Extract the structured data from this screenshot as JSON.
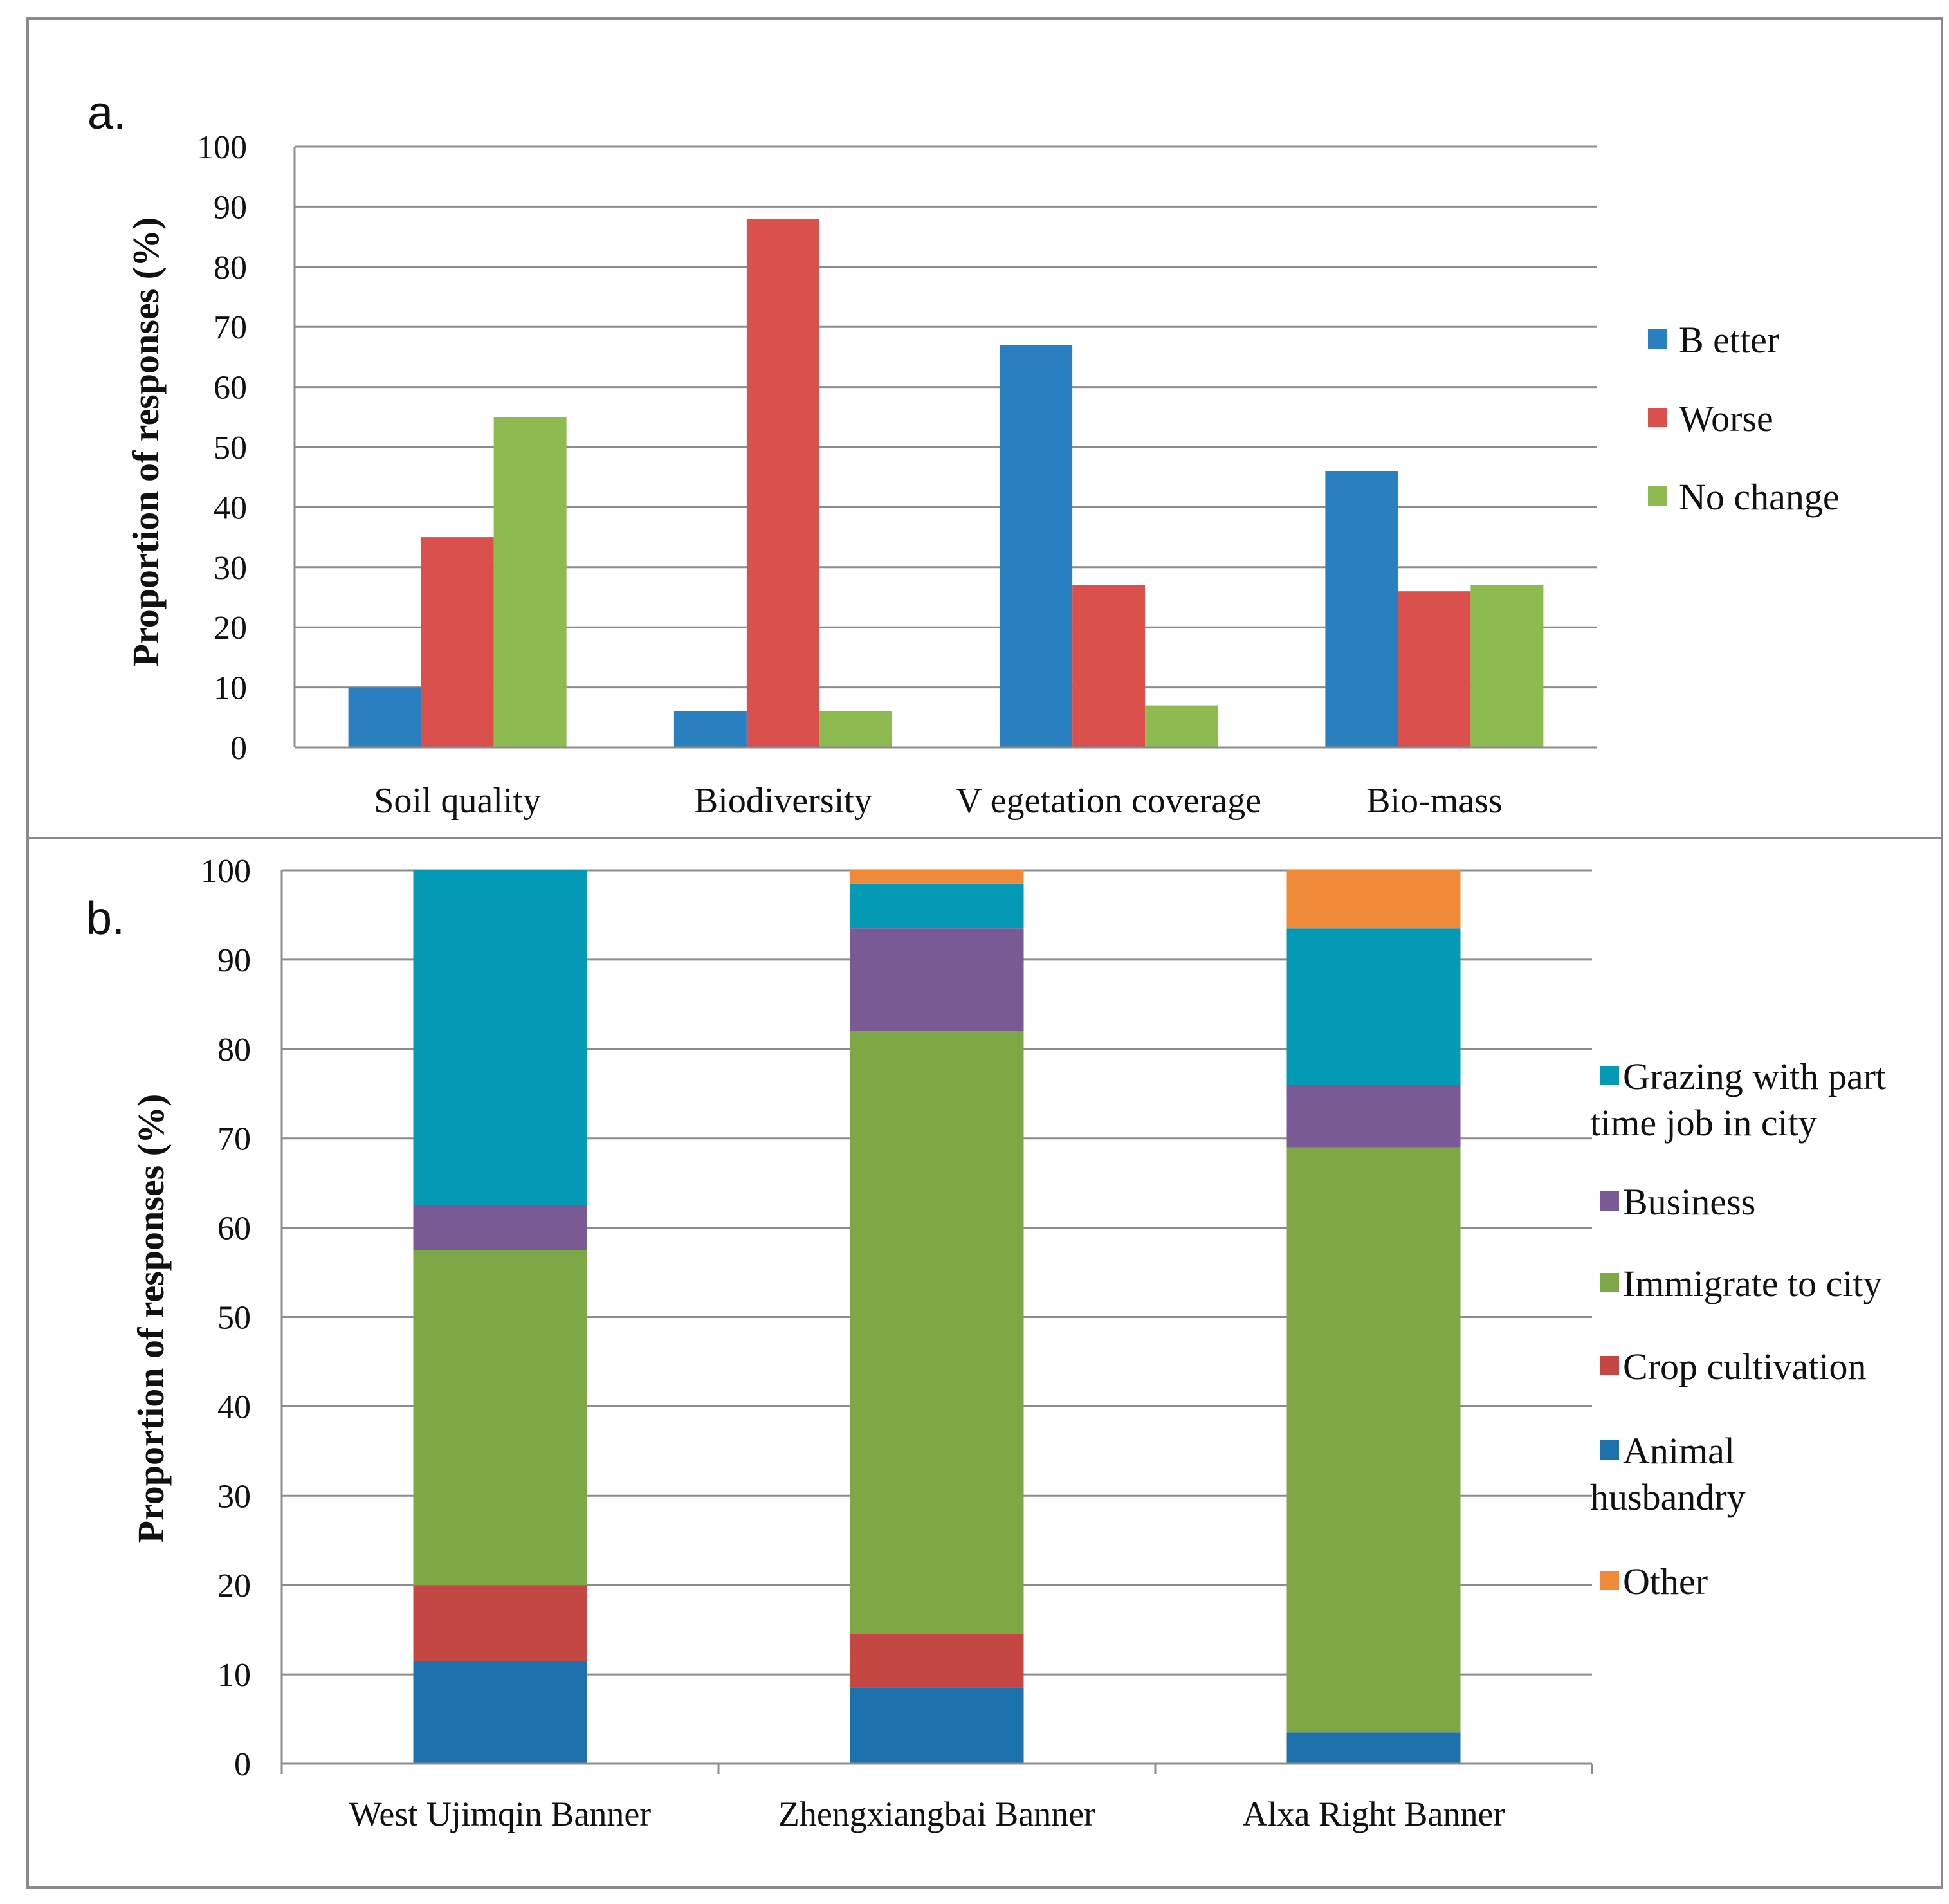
{
  "chart_data": [
    {
      "panel_label": "a.",
      "type": "bar",
      "ylabel": "Proportion  of  responses  (%)",
      "ylim": [
        0,
        100
      ],
      "yticks": [
        0,
        10,
        20,
        30,
        40,
        50,
        60,
        70,
        80,
        90,
        100
      ],
      "grid": true,
      "legend_position": "right",
      "categories": [
        "Soil quality",
        "Biodiversity",
        "V egetation coverage",
        "Bio-mass"
      ],
      "series": [
        {
          "name": "B etter",
          "color": "#2a7fc0",
          "values": [
            10,
            6,
            67,
            46
          ]
        },
        {
          "name": "Worse",
          "color": "#d9504c",
          "values": [
            35,
            88,
            27,
            26
          ]
        },
        {
          "name": "No change",
          "color": "#8dbb4f",
          "values": [
            55,
            6,
            7,
            27
          ]
        }
      ]
    },
    {
      "panel_label": "b.",
      "type": "bar",
      "stacked": true,
      "ylabel": "Proportion  of  responses  (%)",
      "ylim": [
        0,
        100
      ],
      "yticks": [
        0,
        10,
        20,
        30,
        40,
        50,
        60,
        70,
        80,
        90,
        100
      ],
      "grid": true,
      "legend_position": "right",
      "categories": [
        "West Ujimqin Banner",
        "Zhengxiangbai Banner",
        "Alxa Right Banner"
      ],
      "series": [
        {
          "name": "Animal husbandry",
          "color": "#1d72ad",
          "values": [
            11.5,
            8.5,
            3.5
          ]
        },
        {
          "name": "Crop cultivation",
          "color": "#c44743",
          "values": [
            8.5,
            6,
            0
          ]
        },
        {
          "name": "Immigrate to city",
          "color": "#7ea745",
          "values": [
            37.5,
            67.5,
            65.5
          ]
        },
        {
          "name": "Business",
          "color": "#7a5a94",
          "values": [
            5,
            11.5,
            7
          ]
        },
        {
          "name": "Grazing with part time job in city",
          "color": "#0499b4",
          "values": [
            37.5,
            5,
            17.5
          ]
        },
        {
          "name": "Other",
          "color": "#f18a38",
          "values": [
            0,
            1.5,
            6.5
          ]
        }
      ],
      "legend_order": [
        "Grazing with part time job in city",
        "Business",
        "Immigrate to city",
        "Crop cultivation",
        "Animal husbandry",
        "Other"
      ],
      "legend_lines": [
        [
          "Grazing with part",
          "time job in city"
        ],
        [
          "Business"
        ],
        [
          "Immigrate to city"
        ],
        [
          "Crop cultivation"
        ],
        [
          "Animal",
          "husbandry"
        ],
        [
          "Other"
        ]
      ]
    }
  ]
}
